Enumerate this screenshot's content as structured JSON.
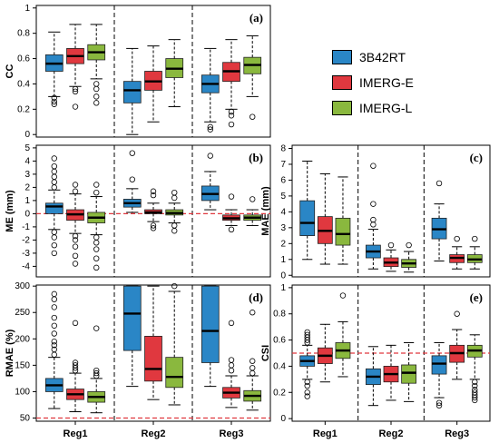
{
  "legend": {
    "items": [
      {
        "label": "3B42RT",
        "color": "#2a86c6"
      },
      {
        "label": "IMERG-E",
        "color": "#e0383f"
      },
      {
        "label": "IMERG-L",
        "color": "#8ab83e"
      }
    ]
  },
  "chart_data": [
    {
      "id": "cc",
      "type": "box",
      "panel_label": "(a)",
      "ylabel": "CC",
      "ylim": [
        -0.02,
        1.02
      ],
      "yticks": [
        0,
        0.2,
        0.4,
        0.6,
        0.8,
        1
      ],
      "categories": [],
      "ref_line": null,
      "groups": [
        {
          "name": "Reg1",
          "boxes": [
            {
              "series": "3B42RT",
              "whisker_low": 0.3,
              "q1": 0.5,
              "median": 0.56,
              "q3": 0.63,
              "whisker_high": 0.81,
              "outliers": [
                0.29,
                0.26,
                0.24
              ]
            },
            {
              "series": "IMERG-E",
              "whisker_low": 0.38,
              "q1": 0.56,
              "median": 0.62,
              "q3": 0.68,
              "whisker_high": 0.87,
              "outliers": [
                0.36,
                0.34,
                0.22
              ]
            },
            {
              "series": "IMERG-L",
              "whisker_low": 0.44,
              "q1": 0.59,
              "median": 0.65,
              "q3": 0.71,
              "whisker_high": 0.87,
              "outliers": [
                0.4,
                0.36,
                0.3,
                0.25
              ]
            }
          ]
        },
        {
          "name": "Reg2",
          "boxes": [
            {
              "series": "3B42RT",
              "whisker_low": 0.0,
              "q1": 0.25,
              "median": 0.35,
              "q3": 0.42,
              "whisker_high": 0.68,
              "outliers": []
            },
            {
              "series": "IMERG-E",
              "whisker_low": 0.1,
              "q1": 0.35,
              "median": 0.42,
              "q3": 0.5,
              "whisker_high": 0.7,
              "outliers": []
            },
            {
              "series": "IMERG-L",
              "whisker_low": 0.22,
              "q1": 0.45,
              "median": 0.52,
              "q3": 0.6,
              "whisker_high": 0.75,
              "outliers": []
            }
          ]
        },
        {
          "name": "Reg3",
          "boxes": [
            {
              "series": "3B42RT",
              "whisker_low": 0.1,
              "q1": 0.33,
              "median": 0.4,
              "q3": 0.47,
              "whisker_high": 0.68,
              "outliers": [
                0.06,
                0.04
              ]
            },
            {
              "series": "IMERG-E",
              "whisker_low": 0.2,
              "q1": 0.42,
              "median": 0.5,
              "q3": 0.57,
              "whisker_high": 0.75,
              "outliers": [
                0.18,
                0.15,
                0.08
              ]
            },
            {
              "series": "IMERG-L",
              "whisker_low": 0.3,
              "q1": 0.48,
              "median": 0.55,
              "q3": 0.61,
              "whisker_high": 0.78,
              "outliers": [
                0.14
              ]
            }
          ]
        }
      ]
    },
    {
      "id": "me",
      "type": "box",
      "panel_label": "(b)",
      "ylabel": "ME (mm)",
      "ylim": [
        -4.8,
        5.2
      ],
      "yticks": [
        -4,
        -3,
        -2,
        -1,
        0,
        1,
        2,
        3,
        4,
        5
      ],
      "categories": [],
      "ref_line": 0,
      "groups": [
        {
          "name": "Reg1",
          "boxes": [
            {
              "series": "3B42RT",
              "whisker_low": -1.2,
              "q1": 0.0,
              "median": 0.55,
              "q3": 0.8,
              "whisker_high": 1.8,
              "outliers": [
                2.0,
                2.4,
                2.8,
                3.2,
                3.6,
                4.2,
                -1.4,
                -1.8,
                -2.4,
                -3.0
              ]
            },
            {
              "series": "IMERG-E",
              "whisker_low": -1.5,
              "q1": -0.5,
              "median": -0.05,
              "q3": 0.3,
              "whisker_high": 1.5,
              "outliers": [
                1.7,
                2.2,
                -1.7,
                -2.0,
                -2.5,
                -3.2,
                -3.8
              ]
            },
            {
              "series": "IMERG-L",
              "whisker_low": -1.6,
              "q1": -0.7,
              "median": -0.3,
              "q3": 0.1,
              "whisker_high": 1.3,
              "outliers": [
                1.6,
                2.2,
                -1.8,
                -2.2,
                -2.7,
                -3.4,
                -4.1
              ]
            }
          ]
        },
        {
          "name": "Reg2",
          "boxes": [
            {
              "series": "3B42RT",
              "whisker_low": 0.1,
              "q1": 0.5,
              "median": 0.8,
              "q3": 1.1,
              "whisker_high": 1.9,
              "outliers": [
                2.6,
                4.6
              ]
            },
            {
              "series": "IMERG-E",
              "whisker_low": -0.6,
              "q1": 0.0,
              "median": 0.1,
              "q3": 0.3,
              "whisker_high": 0.8,
              "outliers": [
                1.4,
                1.7,
                -0.9,
                -1.1
              ]
            },
            {
              "series": "IMERG-L",
              "whisker_low": -0.7,
              "q1": -0.1,
              "median": 0.05,
              "q3": 0.3,
              "whisker_high": 0.8,
              "outliers": [
                1.2,
                1.6,
                -0.9,
                -1.3
              ]
            }
          ]
        },
        {
          "name": "Reg3",
          "boxes": [
            {
              "series": "3B42RT",
              "whisker_low": 0.3,
              "q1": 1.0,
              "median": 1.5,
              "q3": 2.1,
              "whisker_high": 3.2,
              "outliers": [
                4.4
              ]
            },
            {
              "series": "IMERG-E",
              "whisker_low": -0.9,
              "q1": -0.5,
              "median": -0.35,
              "q3": -0.1,
              "whisker_high": 0.3,
              "outliers": [
                1.3,
                -1.2
              ]
            },
            {
              "series": "IMERG-L",
              "whisker_low": -0.9,
              "q1": -0.5,
              "median": -0.3,
              "q3": -0.1,
              "whisker_high": 0.3,
              "outliers": [
                1.1
              ]
            }
          ]
        }
      ]
    },
    {
      "id": "mae",
      "type": "box",
      "panel_label": "(c)",
      "ylabel": "MAE (mm)",
      "ylim": [
        -0.1,
        8.2
      ],
      "yticks": [
        0,
        1,
        2,
        3,
        4,
        5,
        6,
        7,
        8
      ],
      "categories": [],
      "ref_line": null,
      "groups": [
        {
          "name": "Reg1",
          "boxes": [
            {
              "series": "3B42RT",
              "whisker_low": 1.0,
              "q1": 2.5,
              "median": 3.3,
              "q3": 4.7,
              "whisker_high": 7.2,
              "outliers": []
            },
            {
              "series": "IMERG-E",
              "whisker_low": 0.7,
              "q1": 2.0,
              "median": 2.8,
              "q3": 3.7,
              "whisker_high": 6.4,
              "outliers": []
            },
            {
              "series": "IMERG-L",
              "whisker_low": 0.7,
              "q1": 1.9,
              "median": 2.6,
              "q3": 3.6,
              "whisker_high": 6.2,
              "outliers": []
            }
          ]
        },
        {
          "name": "Reg2",
          "boxes": [
            {
              "series": "3B42RT",
              "whisker_low": 0.4,
              "q1": 1.1,
              "median": 1.5,
              "q3": 1.9,
              "whisker_high": 2.9,
              "outliers": [
                3.2,
                3.5,
                4.5,
                6.9
              ]
            },
            {
              "series": "IMERG-E",
              "whisker_low": 0.25,
              "q1": 0.55,
              "median": 0.8,
              "q3": 1.1,
              "whisker_high": 1.6,
              "outliers": [
                1.9
              ]
            },
            {
              "series": "IMERG-L",
              "whisker_low": 0.2,
              "q1": 0.5,
              "median": 0.75,
              "q3": 1.0,
              "whisker_high": 1.5,
              "outliers": [
                1.9
              ]
            }
          ]
        },
        {
          "name": "Reg3",
          "boxes": [
            {
              "series": "3B42RT",
              "whisker_low": 0.9,
              "q1": 2.3,
              "median": 2.9,
              "q3": 3.6,
              "whisker_high": 4.5,
              "outliers": [
                5.8
              ]
            },
            {
              "series": "IMERG-E",
              "whisker_low": 0.4,
              "q1": 0.8,
              "median": 1.1,
              "q3": 1.3,
              "whisker_high": 1.8,
              "outliers": [
                2.3
              ]
            },
            {
              "series": "IMERG-L",
              "whisker_low": 0.4,
              "q1": 0.8,
              "median": 1.0,
              "q3": 1.3,
              "whisker_high": 1.8,
              "outliers": [
                2.3
              ]
            }
          ]
        }
      ]
    },
    {
      "id": "rmae",
      "type": "box",
      "panel_label": "(d)",
      "ylabel": "RMAE (%)",
      "ylim": [
        44,
        302
      ],
      "yticks": [
        50,
        100,
        150,
        200,
        250,
        300
      ],
      "categories": [
        "Reg1",
        "Reg2",
        "Reg3"
      ],
      "ref_line": 50,
      "groups": [
        {
          "name": "Reg1",
          "boxes": [
            {
              "series": "3B42RT",
              "whisker_low": 68,
              "q1": 100,
              "median": 112,
              "q3": 125,
              "whisker_high": 165,
              "outliers": [
                170,
                180,
                188,
                195,
                210,
                225,
                240,
                260,
                275,
                285
              ]
            },
            {
              "series": "IMERG-E",
              "whisker_low": 62,
              "q1": 85,
              "median": 95,
              "q3": 105,
              "whisker_high": 135,
              "outliers": [
                140,
                145,
                150,
                155,
                230
              ]
            },
            {
              "series": "IMERG-L",
              "whisker_low": 60,
              "q1": 80,
              "median": 90,
              "q3": 100,
              "whisker_high": 125,
              "outliers": [
                130,
                135,
                140,
                220
              ]
            }
          ]
        },
        {
          "name": "Reg2",
          "boxes": [
            {
              "series": "3B42RT",
              "whisker_low": 110,
              "q1": 178,
              "median": 248,
              "q3": 300,
              "whisker_high": 300,
              "outliers": []
            },
            {
              "series": "IMERG-E",
              "whisker_low": 85,
              "q1": 120,
              "median": 143,
              "q3": 205,
              "whisker_high": 300,
              "outliers": []
            },
            {
              "series": "IMERG-L",
              "whisker_low": 75,
              "q1": 108,
              "median": 128,
              "q3": 165,
              "whisker_high": 290,
              "outliers": [
                300
              ]
            }
          ]
        },
        {
          "name": "Reg3",
          "boxes": [
            {
              "series": "3B42RT",
              "whisker_low": 110,
              "q1": 155,
              "median": 215,
              "q3": 300,
              "whisker_high": 300,
              "outliers": []
            },
            {
              "series": "IMERG-E",
              "whisker_low": 70,
              "q1": 88,
              "median": 98,
              "q3": 108,
              "whisker_high": 130,
              "outliers": [
                140,
                150,
                160,
                230
              ]
            },
            {
              "series": "IMERG-L",
              "whisker_low": 65,
              "q1": 82,
              "median": 92,
              "q3": 102,
              "whisker_high": 130,
              "outliers": [
                135,
                145,
                158,
                250
              ]
            }
          ]
        }
      ]
    },
    {
      "id": "csi",
      "type": "box",
      "panel_label": "(e)",
      "ylabel": "CSI",
      "ylim": [
        -0.02,
        1.02
      ],
      "yticks": [
        0,
        0.2,
        0.4,
        0.6,
        0.8,
        1
      ],
      "categories": [
        "Reg1",
        "Reg2",
        "Reg3"
      ],
      "ref_line": 0.5,
      "groups": [
        {
          "name": "Reg1",
          "boxes": [
            {
              "series": "3B42RT",
              "whisker_low": 0.3,
              "q1": 0.4,
              "median": 0.44,
              "q3": 0.48,
              "whisker_high": 0.56,
              "outliers": [
                0.58,
                0.6,
                0.62,
                0.64,
                0.66,
                0.28,
                0.25,
                0.2,
                0.17
              ]
            },
            {
              "series": "IMERG-E",
              "whisker_low": 0.28,
              "q1": 0.42,
              "median": 0.48,
              "q3": 0.54,
              "whisker_high": 0.72,
              "outliers": []
            },
            {
              "series": "IMERG-L",
              "whisker_low": 0.32,
              "q1": 0.46,
              "median": 0.52,
              "q3": 0.58,
              "whisker_high": 0.74,
              "outliers": [
                0.94
              ]
            }
          ]
        },
        {
          "name": "Reg2",
          "boxes": [
            {
              "series": "3B42RT",
              "whisker_low": 0.1,
              "q1": 0.26,
              "median": 0.32,
              "q3": 0.38,
              "whisker_high": 0.55,
              "outliers": []
            },
            {
              "series": "IMERG-E",
              "whisker_low": 0.14,
              "q1": 0.28,
              "median": 0.34,
              "q3": 0.4,
              "whisker_high": 0.56,
              "outliers": []
            },
            {
              "series": "IMERG-L",
              "whisker_low": 0.13,
              "q1": 0.27,
              "median": 0.35,
              "q3": 0.41,
              "whisker_high": 0.58,
              "outliers": []
            }
          ]
        },
        {
          "name": "Reg3",
          "boxes": [
            {
              "series": "3B42RT",
              "whisker_low": 0.16,
              "q1": 0.34,
              "median": 0.42,
              "q3": 0.48,
              "whisker_high": 0.58,
              "outliers": [
                0.12,
                0.1
              ]
            },
            {
              "series": "IMERG-E",
              "whisker_low": 0.3,
              "q1": 0.43,
              "median": 0.5,
              "q3": 0.56,
              "whisker_high": 0.68,
              "outliers": [
                0.8
              ]
            },
            {
              "series": "IMERG-L",
              "whisker_low": 0.3,
              "q1": 0.47,
              "median": 0.52,
              "q3": 0.56,
              "whisker_high": 0.64,
              "outliers": [
                0.28,
                0.25,
                0.22,
                0.2,
                0.18,
                0.16,
                0.14
              ]
            }
          ]
        }
      ]
    }
  ]
}
